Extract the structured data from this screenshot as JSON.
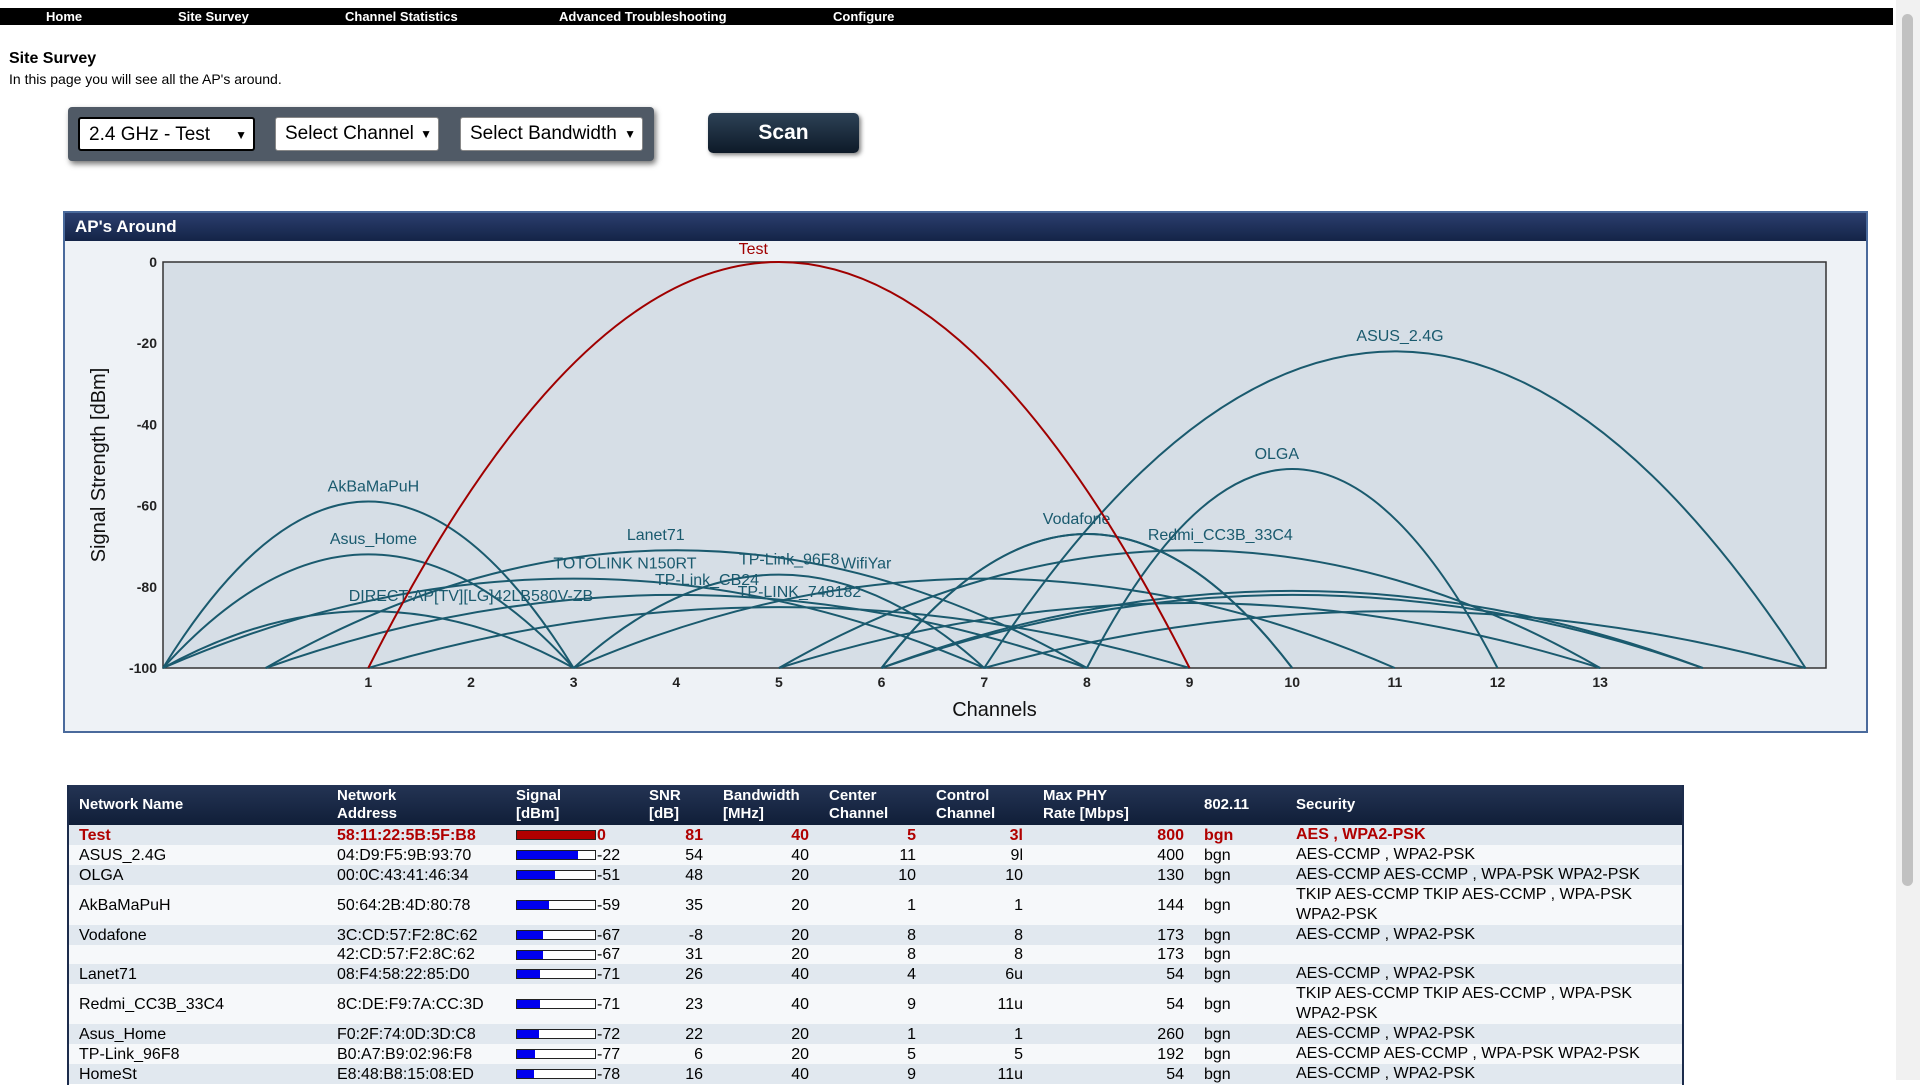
{
  "nav": [
    "Home",
    "Site Survey",
    "Channel Statistics",
    "Advanced Troubleshooting",
    "Configure"
  ],
  "page": {
    "title": "Site Survey",
    "description": "In this page you will see all the AP's around."
  },
  "filters": {
    "band": "2.4 GHz - Test",
    "channel": "Select Channel",
    "bandwidth": "Select Bandwidth",
    "scan_label": "Scan"
  },
  "chart_panel": {
    "title": "AP's Around"
  },
  "chart_data": {
    "type": "line",
    "ylabel": "Signal Strength [dBm]",
    "xlabel": "Channels",
    "y_ticks": [
      "0",
      "-20",
      "-40",
      "-60",
      "-80",
      "-100"
    ],
    "x_ticks": [
      "1",
      "2",
      "3",
      "4",
      "5",
      "6",
      "7",
      "8",
      "9",
      "10",
      "11",
      "12",
      "13"
    ],
    "ylim": [
      -100,
      0
    ],
    "xlim": [
      -1,
      15.2
    ],
    "highlight_color": "#a00000",
    "series_color": "#1a5a6e",
    "series": [
      {
        "name": "Test",
        "x0": 1,
        "x1": 9,
        "peak_x": 5,
        "signal": 0,
        "label_x": 4.75,
        "label_y": 2,
        "highlight": true
      },
      {
        "name": "ASUS_2.4G",
        "x0": 7,
        "x1": 15,
        "peak_x": 11,
        "signal": -22,
        "label_x": 11.05
      },
      {
        "name": "OLGA",
        "x0": 8,
        "x1": 12,
        "peak_x": 10,
        "signal": -51,
        "label_x": 9.85
      },
      {
        "name": "AkBaMaPuH",
        "x0": -1,
        "x1": 3,
        "peak_x": 1,
        "signal": -59,
        "label_x": 1.05
      },
      {
        "name": "Vodafone",
        "x0": 6,
        "x1": 10,
        "peak_x": 8,
        "signal": -67,
        "label_x": 7.9
      },
      {
        "name": "",
        "x0": 6,
        "x1": 10,
        "peak_x": 8,
        "signal": -67
      },
      {
        "name": "Lanet71",
        "x0": 0,
        "x1": 8,
        "peak_x": 4,
        "signal": -71,
        "label_x": 3.8
      },
      {
        "name": "Redmi_CC3B_33C4",
        "x0": 5,
        "x1": 13,
        "peak_x": 9,
        "signal": -71,
        "label_x": 9.3
      },
      {
        "name": "Asus_Home",
        "x0": -1,
        "x1": 3,
        "peak_x": 1,
        "signal": -72,
        "label_x": 1.05
      },
      {
        "name": "TP-Link_96F8",
        "x0": 3,
        "x1": 7,
        "peak_x": 5,
        "signal": -77,
        "label_x": 5.1
      },
      {
        "name": "WifiYar",
        "x0": 3,
        "x1": 11,
        "peak_x": 7,
        "signal": -78,
        "label_x": 5.85
      },
      {
        "name": "TOTOLINK N150RT",
        "x0": -1,
        "x1": 7,
        "peak_x": 3,
        "signal": -78,
        "label_x": 3.5
      },
      {
        "name": "TP-Link_CB24",
        "x0": 0,
        "x1": 8,
        "peak_x": 4,
        "signal": -82,
        "label_x": 4.3
      },
      {
        "name": "DIRECT-AP[TV][LG]42LB580V-ZB",
        "x0": -1,
        "x1": 3,
        "peak_x": 1,
        "signal": -86,
        "label_x": 2.0
      },
      {
        "name": "TP-LINK_748182",
        "x0": 1,
        "x1": 9,
        "peak_x": 5,
        "signal": -85,
        "label_x": 5.2
      },
      {
        "name": "",
        "x0": 6,
        "x1": 14,
        "peak_x": 10,
        "signal": -81
      },
      {
        "name": "",
        "x0": 6,
        "x1": 14,
        "peak_x": 10,
        "signal": -82
      },
      {
        "name": "",
        "x0": 7,
        "x1": 15,
        "peak_x": 11,
        "signal": -86
      },
      {
        "name": "",
        "x0": 5,
        "x1": 13,
        "peak_x": 9,
        "signal": -84
      }
    ]
  },
  "table": {
    "headers": [
      [
        "Network Name"
      ],
      [
        "Network",
        "Address"
      ],
      [
        "Signal",
        "[dBm]"
      ],
      [
        "SNR",
        "[dB]"
      ],
      [
        "Bandwidth",
        "[MHz]"
      ],
      [
        "Center",
        "Channel"
      ],
      [
        "Control",
        "Channel"
      ],
      [
        "Max PHY",
        "Rate [Mbps]"
      ],
      [
        "802.11"
      ],
      [
        "Security"
      ]
    ],
    "rows": [
      {
        "name": "Test",
        "address": "58:11:22:5B:5F:B8",
        "signal": "0",
        "snr": "81",
        "bandwidth": "40",
        "center": "5",
        "control": "3l",
        "rate": "800",
        "mode": "bgn",
        "security": "AES , WPA2-PSK",
        "highlight": true
      },
      {
        "name": "ASUS_2.4G",
        "address": "04:D9:F5:9B:93:70",
        "signal": "-22",
        "snr": "54",
        "bandwidth": "40",
        "center": "11",
        "control": "9l",
        "rate": "400",
        "mode": "bgn",
        "security": "AES-CCMP , WPA2-PSK"
      },
      {
        "name": "OLGA",
        "address": "00:0C:43:41:46:34",
        "signal": "-51",
        "snr": "48",
        "bandwidth": "20",
        "center": "10",
        "control": "10",
        "rate": "130",
        "mode": "bgn",
        "security": "AES-CCMP AES-CCMP , WPA-PSK WPA2-PSK"
      },
      {
        "name": "AkBaMaPuH",
        "address": "50:64:2B:4D:80:78",
        "signal": "-59",
        "snr": "35",
        "bandwidth": "20",
        "center": "1",
        "control": "1",
        "rate": "144",
        "mode": "bgn",
        "security": "TKIP AES-CCMP TKIP AES-CCMP , WPA-PSK WPA2-PSK"
      },
      {
        "name": "Vodafone",
        "address": "3C:CD:57:F2:8C:62",
        "signal": "-67",
        "snr": "-8",
        "bandwidth": "20",
        "center": "8",
        "control": "8",
        "rate": "173",
        "mode": "bgn",
        "security": "AES-CCMP , WPA2-PSK"
      },
      {
        "name": "",
        "address": "42:CD:57:F2:8C:62",
        "signal": "-67",
        "snr": "31",
        "bandwidth": "20",
        "center": "8",
        "control": "8",
        "rate": "173",
        "mode": "bgn",
        "security": ""
      },
      {
        "name": "Lanet71",
        "address": "08:F4:58:22:85:D0",
        "signal": "-71",
        "snr": "26",
        "bandwidth": "40",
        "center": "4",
        "control": "6u",
        "rate": "54",
        "mode": "bgn",
        "security": "AES-CCMP , WPA2-PSK"
      },
      {
        "name": "Redmi_CC3B_33C4",
        "address": "8C:DE:F9:7A:CC:3D",
        "signal": "-71",
        "snr": "23",
        "bandwidth": "40",
        "center": "9",
        "control": "11u",
        "rate": "54",
        "mode": "bgn",
        "security": "TKIP AES-CCMP TKIP AES-CCMP , WPA-PSK WPA2-PSK"
      },
      {
        "name": "Asus_Home",
        "address": "F0:2F:74:0D:3D:C8",
        "signal": "-72",
        "snr": "22",
        "bandwidth": "20",
        "center": "1",
        "control": "1",
        "rate": "260",
        "mode": "bgn",
        "security": "AES-CCMP , WPA2-PSK"
      },
      {
        "name": "TP-Link_96F8",
        "address": "B0:A7:B9:02:96:F8",
        "signal": "-77",
        "snr": "6",
        "bandwidth": "20",
        "center": "5",
        "control": "5",
        "rate": "192",
        "mode": "bgn",
        "security": "AES-CCMP AES-CCMP , WPA-PSK WPA2-PSK"
      },
      {
        "name": "HomeSt",
        "address": "E8:48:B8:15:08:ED",
        "signal": "-78",
        "snr": "16",
        "bandwidth": "40",
        "center": "9",
        "control": "11u",
        "rate": "54",
        "mode": "bgn",
        "security": "AES-CCMP , WPA2-PSK"
      }
    ]
  }
}
